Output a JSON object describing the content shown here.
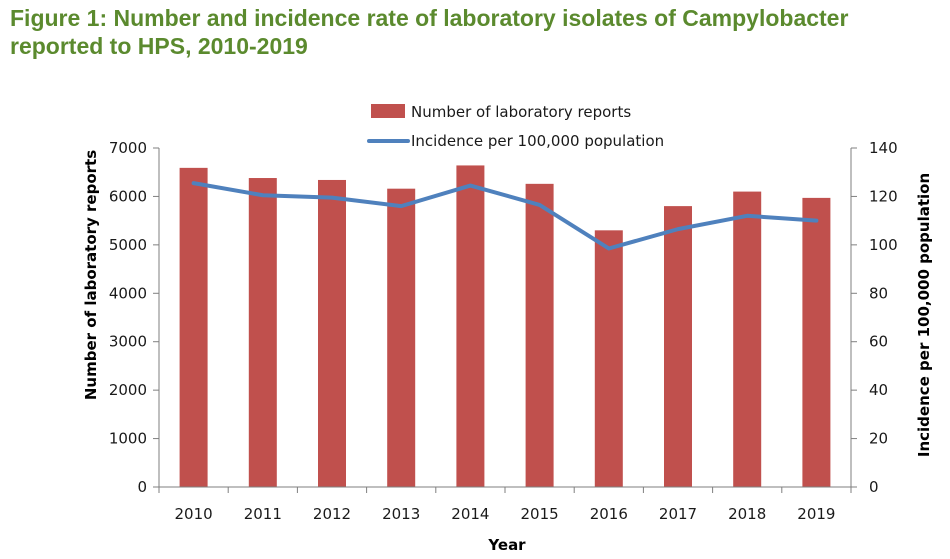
{
  "figure": {
    "title": "Figure 1: Number and incidence rate of laboratory isolates of Campylobacter reported to HPS, 2010-2019"
  },
  "chart_data": {
    "type": "bar",
    "categories": [
      "2010",
      "2011",
      "2012",
      "2013",
      "2014",
      "2015",
      "2016",
      "2017",
      "2018",
      "2019"
    ],
    "series": [
      {
        "name": "Number of laboratory reports",
        "type": "bar",
        "axis": "left",
        "color": "#c0504d",
        "values": [
          6590,
          6380,
          6340,
          6160,
          6640,
          6260,
          5300,
          5800,
          6100,
          5970
        ]
      },
      {
        "name": "Incidence per 100,000 population",
        "type": "line",
        "axis": "right",
        "color": "#4f81bd",
        "values": [
          125.5,
          120.5,
          119.5,
          116.0,
          124.5,
          116.5,
          98.5,
          106.5,
          112.0,
          110.0
        ]
      }
    ],
    "xlabel": "Year",
    "ylabel": "Number of laboratory reports",
    "y2label": "Incidence per 100,000 population",
    "ylim": [
      0,
      7000
    ],
    "y2lim": [
      0,
      140
    ],
    "yticks": [
      "0",
      "1000",
      "2000",
      "3000",
      "4000",
      "5000",
      "6000",
      "7000"
    ],
    "y2ticks": [
      "0",
      "20",
      "40",
      "60",
      "80",
      "100",
      "120",
      "140"
    ],
    "legend_position": "top-center",
    "grid": false
  }
}
